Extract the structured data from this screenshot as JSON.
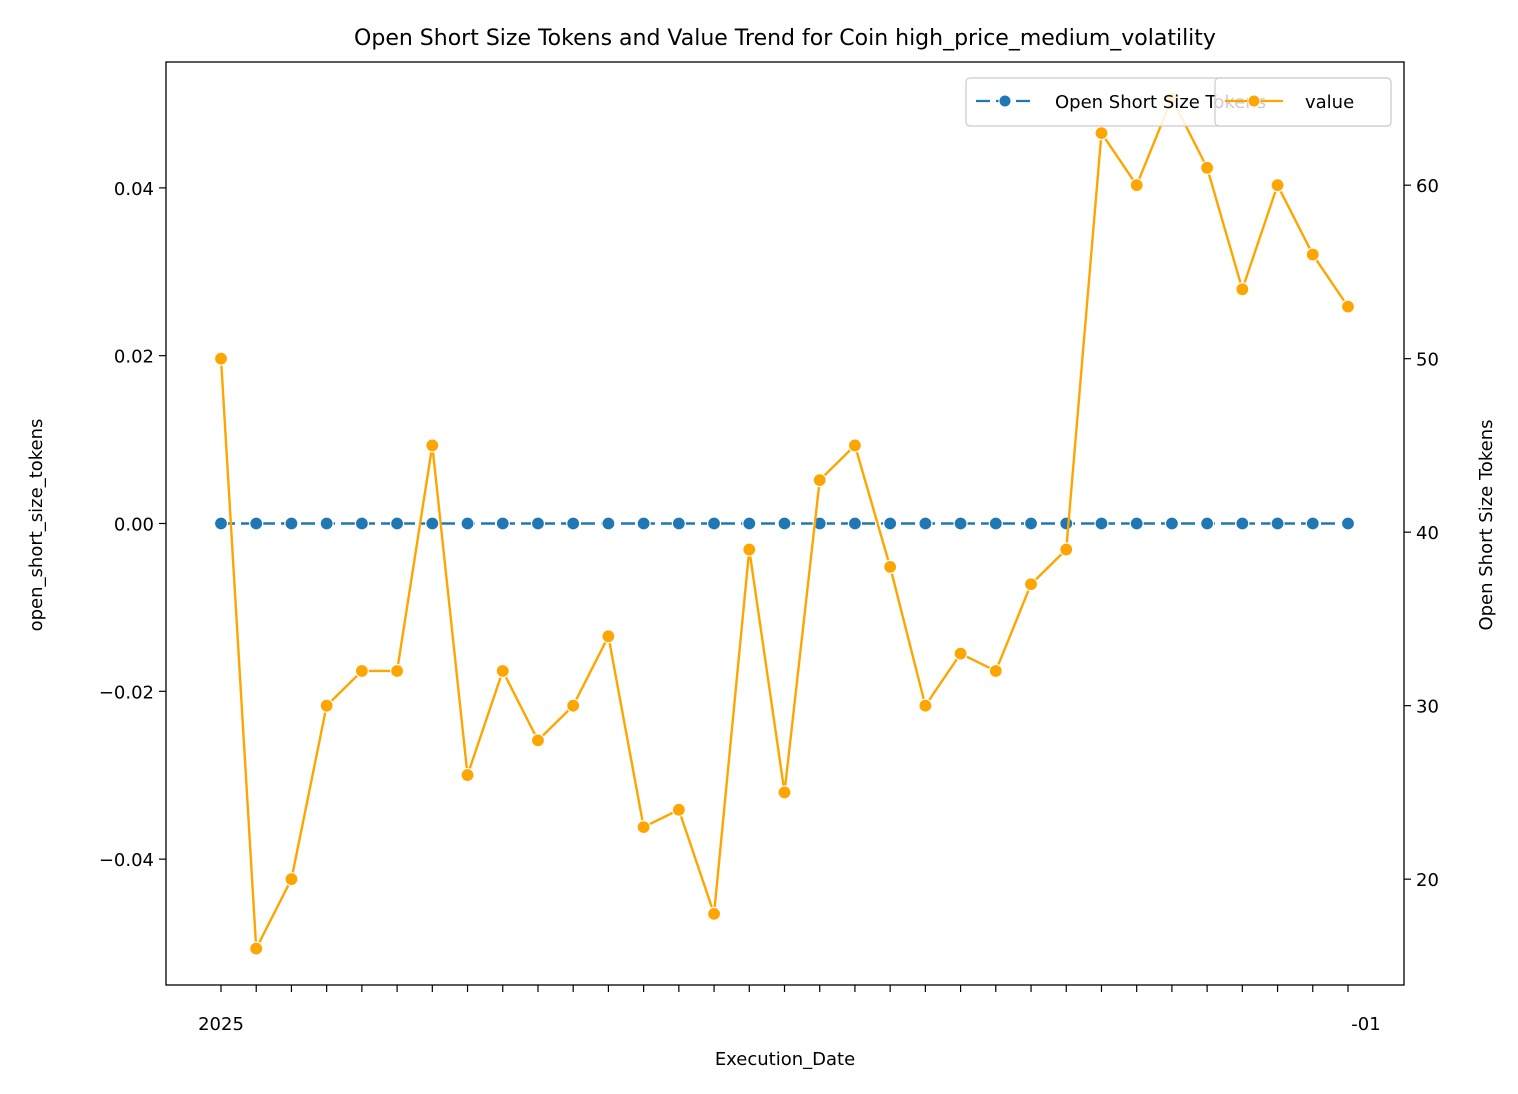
{
  "chart_data": {
    "type": "line",
    "title": "Open Short Size Tokens and Value Trend for Coin high_price_medium_volatility",
    "xlabel": "Execution_Date",
    "ylabel_left": "open_short_size_tokens",
    "ylabel_right": "Open Short Size Tokens",
    "x_tick_labels_note": "33 overlapping date labels; visible fragments include the leading '2025' and trailing '-01'",
    "x_first_label": "2025",
    "x_last_label": "-01",
    "n_points": 33,
    "left_axis": {
      "ylim": [
        -0.055,
        0.055
      ],
      "ticks": [
        -0.04,
        -0.02,
        0.0,
        0.02,
        0.04
      ],
      "tick_labels": [
        "−0.04",
        "−0.02",
        "0.00",
        "0.02",
        "0.04"
      ]
    },
    "right_axis": {
      "ylim": [
        13.9,
        67.1
      ],
      "ticks": [
        20,
        30,
        40,
        50,
        60
      ],
      "tick_labels": [
        "20",
        "30",
        "40",
        "50",
        "60"
      ]
    },
    "series": [
      {
        "name": "Open Short Size Tokens",
        "axis": "left",
        "color": "#1f77b4",
        "marker": "circle",
        "values": [
          0,
          0,
          0,
          0,
          0,
          0,
          0,
          0,
          0,
          0,
          0,
          0,
          0,
          0,
          0,
          0,
          0,
          0,
          0,
          0,
          0,
          0,
          0,
          0,
          0,
          0,
          0,
          0,
          0,
          0,
          0,
          0,
          0
        ]
      },
      {
        "name": "value",
        "axis": "right",
        "color": "#ffa500",
        "marker": "circle",
        "values": [
          50,
          16,
          20,
          30,
          32,
          32,
          45,
          26,
          32,
          28,
          30,
          34,
          23,
          24,
          18,
          39,
          25,
          43,
          45,
          38,
          30,
          33,
          32,
          37,
          39,
          63,
          60,
          65,
          61,
          54,
          60,
          56,
          53
        ]
      }
    ],
    "legend_left": {
      "placement": "top-right",
      "label": "Open Short Size Tokens"
    },
    "legend_right": {
      "placement": "top-right",
      "label": "value"
    },
    "grid": false
  }
}
